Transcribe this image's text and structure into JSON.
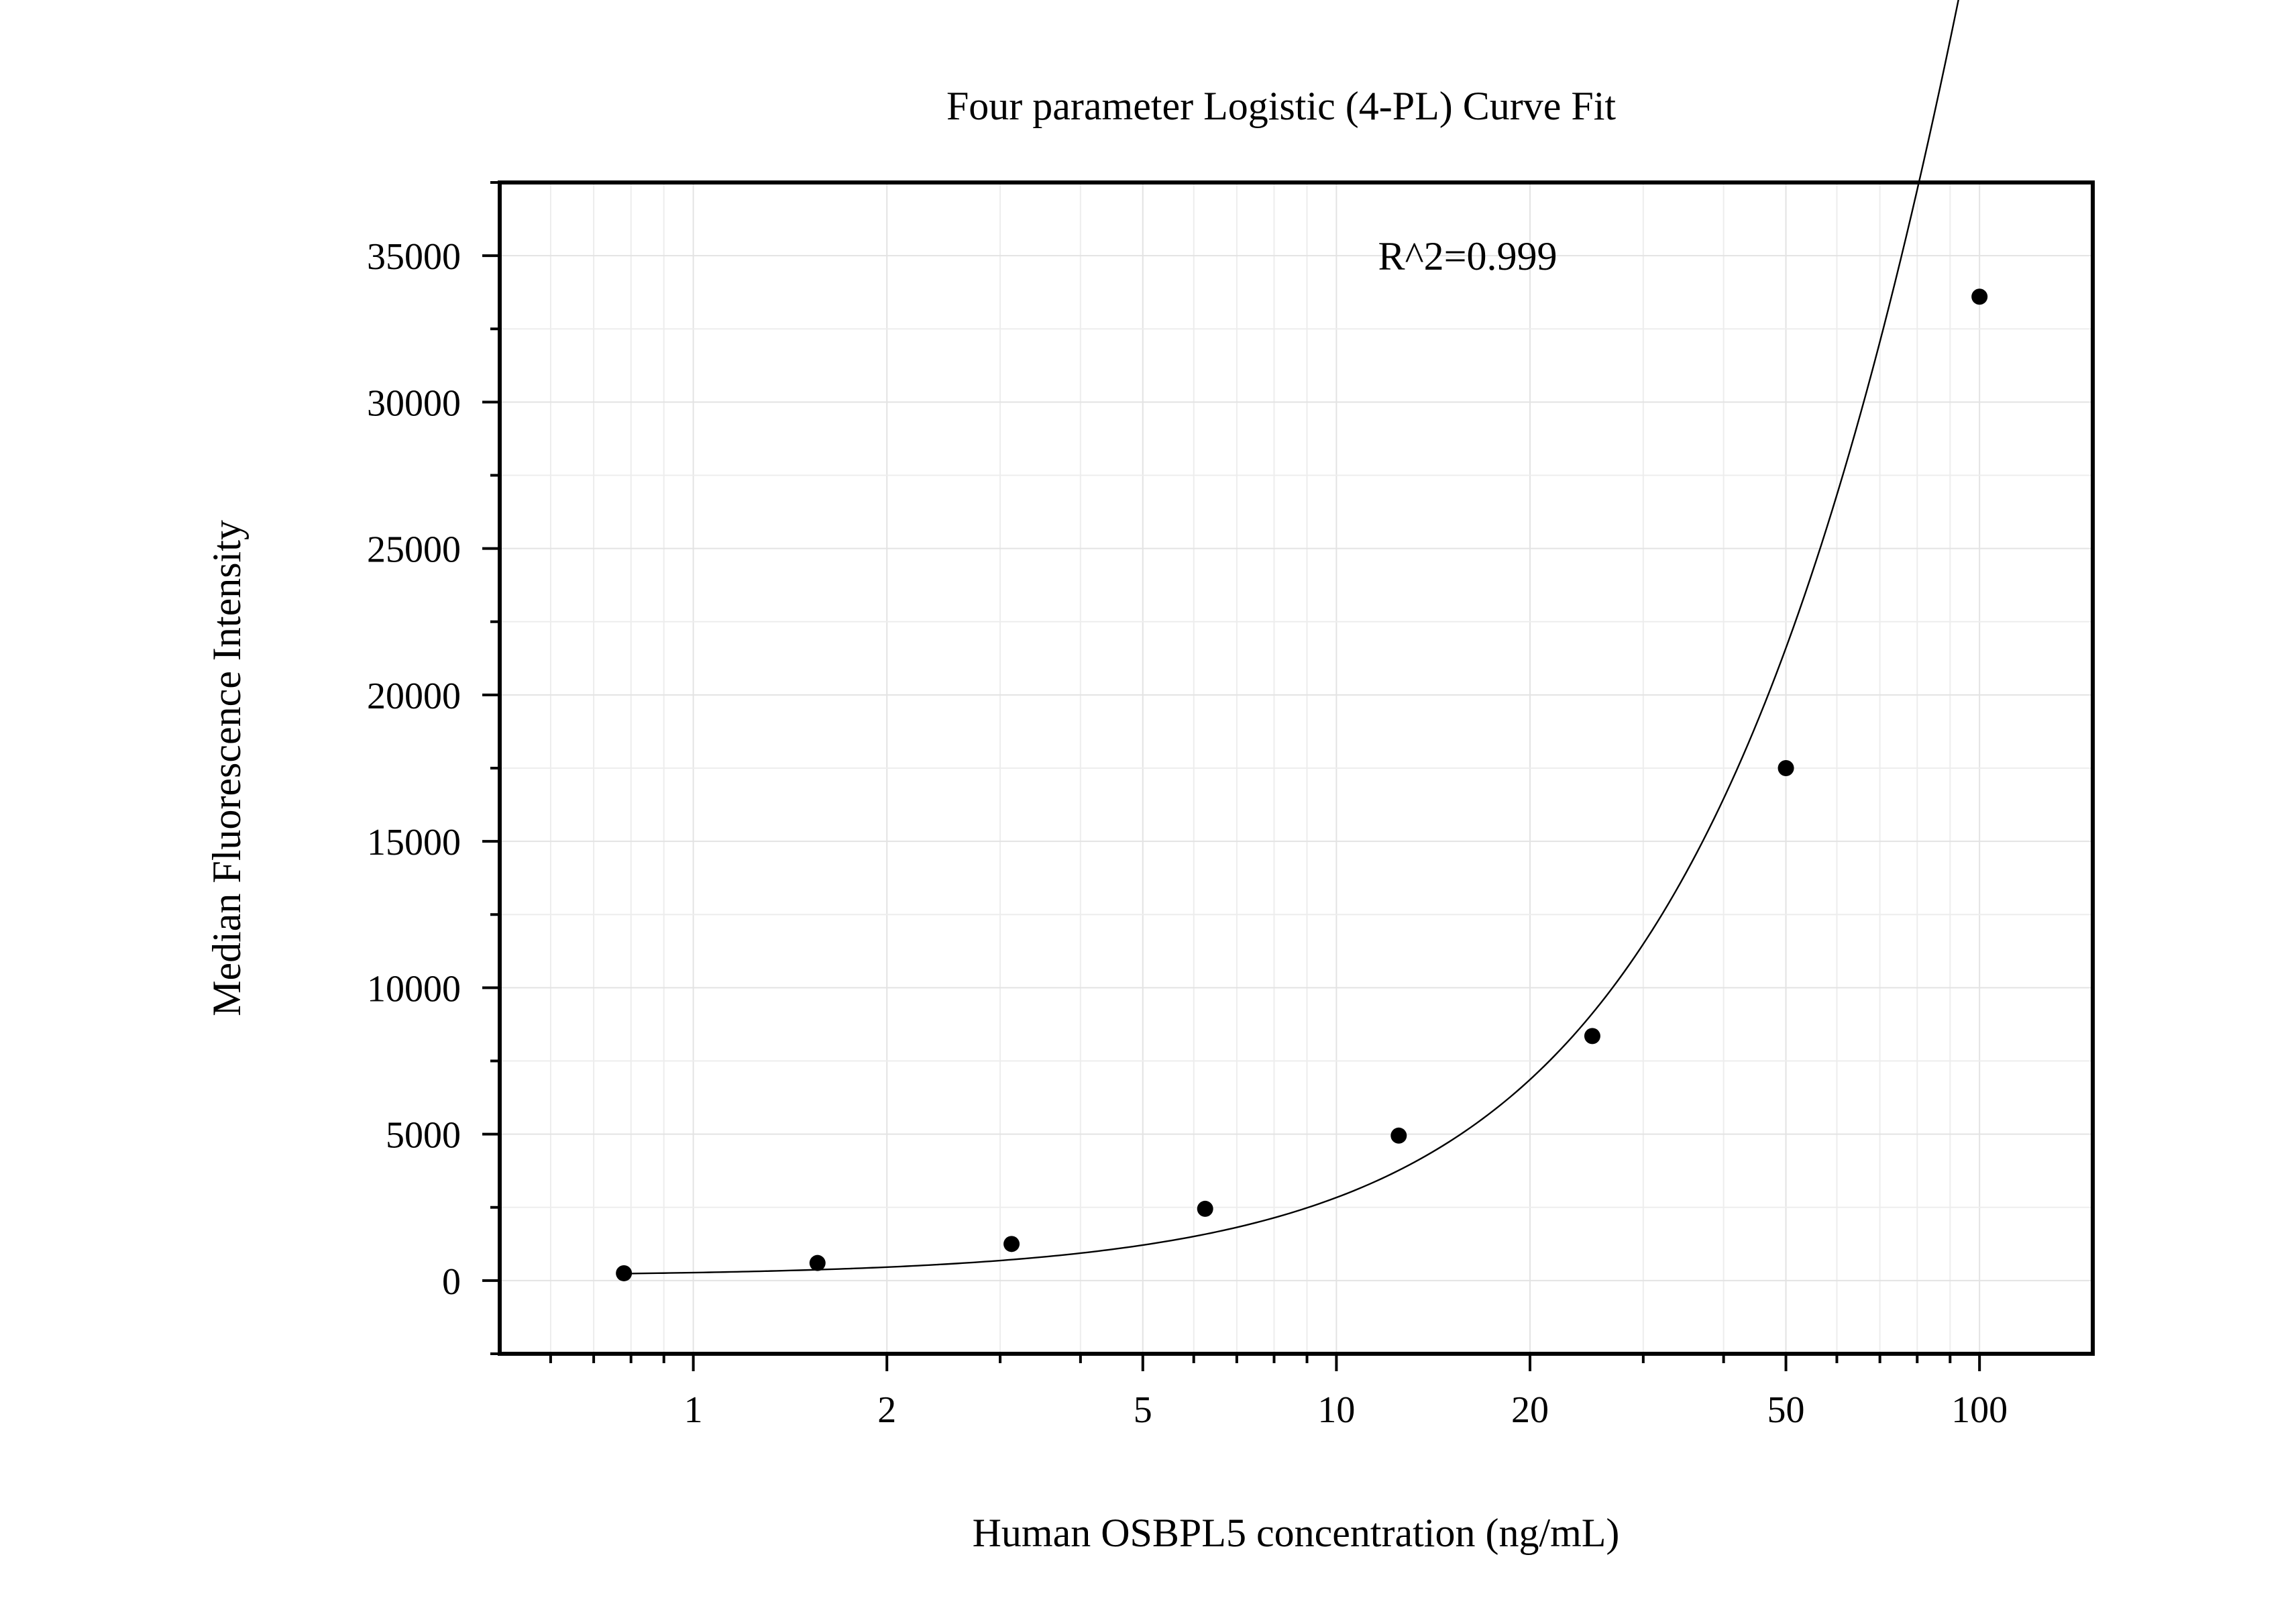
{
  "chart_data": {
    "type": "scatter",
    "title": "Four parameter Logistic (4-PL) Curve Fit",
    "xlabel": "Human OSBPL5 concentration (ng/mL)",
    "ylabel": "Median Fluorescence Intensity",
    "x_scale": "log",
    "xlim": [
      0.5,
      150
    ],
    "ylim": [
      -2500,
      37500
    ],
    "x_ticks": [
      1,
      2,
      5,
      10,
      20,
      50,
      100
    ],
    "x_tick_labels": [
      "1",
      "2",
      "5",
      "10",
      "20",
      "50",
      "100"
    ],
    "y_ticks": [
      0,
      5000,
      10000,
      15000,
      20000,
      25000,
      30000,
      35000
    ],
    "y_tick_labels": [
      "0",
      "5000",
      "10000",
      "15000",
      "20000",
      "25000",
      "30000",
      "35000"
    ],
    "grid": true,
    "annotation": "R^2=0.999",
    "series": [
      {
        "x": [
          0.78,
          1.56,
          3.125,
          6.25,
          12.5,
          25,
          50,
          100
        ],
        "y": [
          250,
          600,
          1250,
          2450,
          4950,
          8350,
          17500,
          33600
        ]
      }
    ],
    "fit_curve": {
      "model": "4PL",
      "x_range": [
        0.78,
        100
      ],
      "params": {
        "A": 150,
        "B": 1.35,
        "C": 250,
        "D": 210000
      }
    }
  }
}
